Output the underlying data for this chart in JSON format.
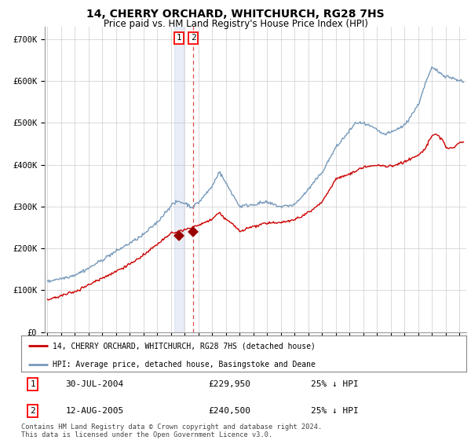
{
  "title": "14, CHERRY ORCHARD, WHITCHURCH, RG28 7HS",
  "subtitle": "Price paid vs. HM Land Registry's House Price Index (HPI)",
  "legend_line1": "14, CHERRY ORCHARD, WHITCHURCH, RG28 7HS (detached house)",
  "legend_line2": "HPI: Average price, detached house, Basingstoke and Deane",
  "table_row1": [
    "1",
    "30-JUL-2004",
    "£229,950",
    "25% ↓ HPI"
  ],
  "table_row2": [
    "2",
    "12-AUG-2005",
    "£240,500",
    "25% ↓ HPI"
  ],
  "footnote": "Contains HM Land Registry data © Crown copyright and database right 2024.\nThis data is licensed under the Open Government Licence v3.0.",
  "red_line_color": "#cc0000",
  "blue_line_color": "#7799bb",
  "marker_color": "#990000",
  "vline_blue_color": "#aabbdd",
  "vline_red_color": "#cc0000",
  "grid_color": "#cccccc",
  "background_color": "#ffffff",
  "sale1_year": 2004.58,
  "sale1_price": 229950,
  "sale2_year": 2005.62,
  "sale2_price": 240500,
  "ylim": [
    0,
    730000
  ],
  "xlim_start": 1994.8,
  "xlim_end": 2025.5
}
